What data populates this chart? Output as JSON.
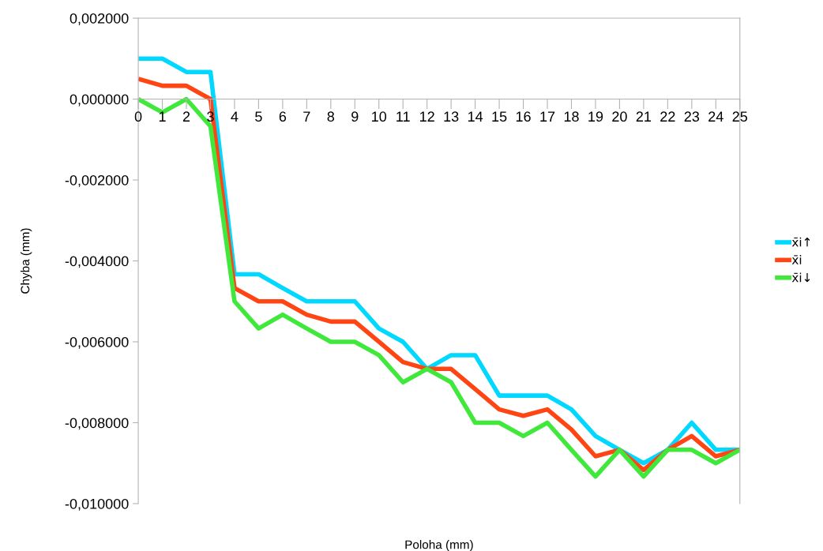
{
  "chart_data": {
    "type": "line",
    "xlabel": "Poloha (mm)",
    "ylabel": "Chyba (mm)",
    "x": [
      0,
      1,
      2,
      3,
      4,
      5,
      6,
      7,
      8,
      9,
      10,
      11,
      12,
      13,
      14,
      15,
      16,
      17,
      18,
      19,
      20,
      21,
      22,
      23,
      24,
      25
    ],
    "series": [
      {
        "name": "x̄i↑",
        "color": "#00d8ff",
        "values": [
          0.001,
          0.001,
          0.00067,
          0.00067,
          -0.00433,
          -0.00433,
          -0.00467,
          -0.005,
          -0.005,
          -0.005,
          -0.00567,
          -0.006,
          -0.00667,
          -0.00633,
          -0.00633,
          -0.00733,
          -0.00733,
          -0.00733,
          -0.00767,
          -0.00833,
          -0.00867,
          -0.009,
          -0.00867,
          -0.008,
          -0.00867,
          -0.00867
        ]
      },
      {
        "name": "x̄i",
        "color": "#ff4513",
        "values": [
          0.0005,
          0.00033,
          0.00033,
          0.0,
          -0.00467,
          -0.005,
          -0.005,
          -0.00533,
          -0.0055,
          -0.0055,
          -0.006,
          -0.0065,
          -0.00667,
          -0.00667,
          -0.00717,
          -0.00767,
          -0.00783,
          -0.00767,
          -0.00817,
          -0.00883,
          -0.00867,
          -0.00917,
          -0.00867,
          -0.00833,
          -0.00883,
          -0.00867
        ]
      },
      {
        "name": "x̄i↓",
        "color": "#40e83c",
        "values": [
          0.0,
          -0.00033,
          0.0,
          -0.00067,
          -0.005,
          -0.00567,
          -0.00533,
          -0.00567,
          -0.006,
          -0.006,
          -0.00633,
          -0.007,
          -0.00667,
          -0.007,
          -0.008,
          -0.008,
          -0.00833,
          -0.008,
          -0.00867,
          -0.00933,
          -0.00867,
          -0.00933,
          -0.00867,
          -0.00867,
          -0.009,
          -0.00867
        ]
      }
    ],
    "xlim": [
      0,
      25
    ],
    "xticks": [
      0,
      1,
      2,
      3,
      4,
      5,
      6,
      7,
      8,
      9,
      10,
      11,
      12,
      13,
      14,
      15,
      16,
      17,
      18,
      19,
      20,
      21,
      22,
      23,
      24,
      25
    ],
    "ylim": [
      -0.01,
      0.002
    ],
    "yticks": [
      {
        "value": -0.01,
        "label": "-0,010000"
      },
      {
        "value": -0.008,
        "label": "-0,008000"
      },
      {
        "value": -0.006,
        "label": "-0,006000"
      },
      {
        "value": -0.004,
        "label": "-0,004000"
      },
      {
        "value": -0.002,
        "label": "-0,002000"
      },
      {
        "value": 0,
        "label": "0,000000"
      },
      {
        "value": 0.002,
        "label": "0,002000"
      }
    ],
    "grid": false,
    "legend": "right",
    "marker": "none",
    "line_style": "solid"
  }
}
